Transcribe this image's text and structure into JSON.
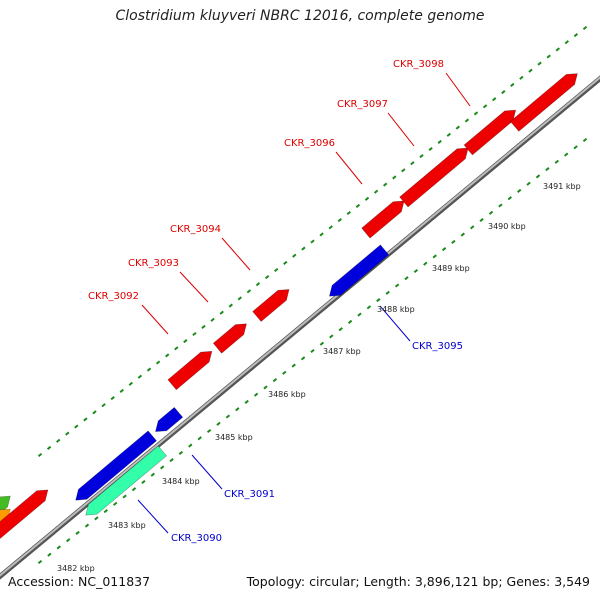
{
  "title": "Clostridium kluyveri NBRC 12016, complete genome",
  "footer": {
    "accession": "Accession: NC_011837",
    "topology": "Topology: circular; Length: 3,896,121 bp; Genes: 3,549"
  },
  "colors": {
    "forward_gene": "#ee0000",
    "reverse_gene": "#0000dd",
    "rrna_like_gene": "#33ffaa",
    "orange_feature": "#ff9900",
    "green_feature": "#44bb22",
    "backbone": "#888888",
    "tick": "#1a8a1a",
    "forward_label": "#dd0000",
    "reverse_label": "#0000cc"
  },
  "forward_genes": [
    {
      "name": "CKR_3092"
    },
    {
      "name": "CKR_3093"
    },
    {
      "name": "CKR_3094"
    },
    {
      "name": "CKR_3096"
    },
    {
      "name": "CKR_3097"
    },
    {
      "name": "CKR_3098"
    }
  ],
  "reverse_genes": [
    {
      "name": "CKR_3090"
    },
    {
      "name": "CKR_3091"
    },
    {
      "name": "CKR_3095"
    }
  ],
  "kbp_ticks": [
    "3482 kbp",
    "3483 kbp",
    "3484 kbp",
    "3485 kbp",
    "3486 kbp",
    "3487 kbp",
    "3488 kbp",
    "3489 kbp",
    "3490 kbp",
    "3491 kbp"
  ]
}
